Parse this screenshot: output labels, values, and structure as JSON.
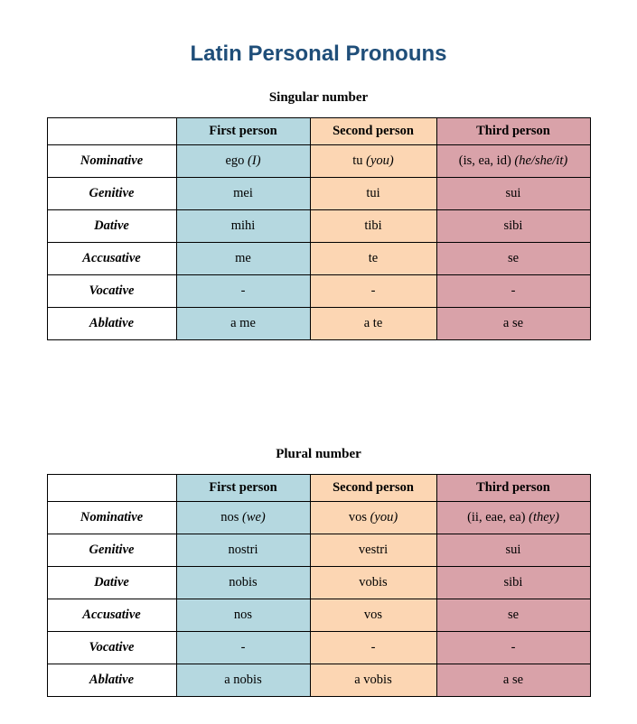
{
  "page": {
    "title": "Latin Personal Pronouns"
  },
  "colors": {
    "title_text": "#1f4e79",
    "first_person_bg": "#b5d8e0",
    "second_person_bg": "#fcd6b3",
    "third_person_bg": "#d9a2a9",
    "border": "#000000"
  },
  "tables": [
    {
      "caption": "Singular number",
      "headers": [
        "",
        "First person",
        "Second person",
        "Third person"
      ],
      "rows": [
        {
          "case": "Nominative",
          "cells": [
            {
              "main": "ego",
              "note": "(I)"
            },
            {
              "main": "tu",
              "note": "(you)"
            },
            {
              "main": "(is, ea, id)",
              "note": "(he/she/it)"
            }
          ]
        },
        {
          "case": "Genitive",
          "cells": [
            {
              "main": "mei",
              "note": ""
            },
            {
              "main": "tui",
              "note": ""
            },
            {
              "main": "sui",
              "note": ""
            }
          ]
        },
        {
          "case": "Dative",
          "cells": [
            {
              "main": "mihi",
              "note": ""
            },
            {
              "main": "tibi",
              "note": ""
            },
            {
              "main": "sibi",
              "note": ""
            }
          ]
        },
        {
          "case": "Accusative",
          "cells": [
            {
              "main": "me",
              "note": ""
            },
            {
              "main": "te",
              "note": ""
            },
            {
              "main": "se",
              "note": ""
            }
          ]
        },
        {
          "case": "Vocative",
          "cells": [
            {
              "main": "-",
              "note": ""
            },
            {
              "main": "-",
              "note": ""
            },
            {
              "main": "-",
              "note": ""
            }
          ]
        },
        {
          "case": "Ablative",
          "cells": [
            {
              "main": "a me",
              "note": ""
            },
            {
              "main": "a te",
              "note": ""
            },
            {
              "main": "a se",
              "note": ""
            }
          ]
        }
      ]
    },
    {
      "caption": "Plural number",
      "headers": [
        "",
        "First person",
        "Second person",
        "Third person"
      ],
      "rows": [
        {
          "case": "Nominative",
          "cells": [
            {
              "main": "nos",
              "note": "(we)"
            },
            {
              "main": "vos",
              "note": "(you)"
            },
            {
              "main": "(ii, eae, ea)",
              "note": "(they)"
            }
          ]
        },
        {
          "case": "Genitive",
          "cells": [
            {
              "main": "nostri",
              "note": ""
            },
            {
              "main": "vestri",
              "note": ""
            },
            {
              "main": "sui",
              "note": ""
            }
          ]
        },
        {
          "case": "Dative",
          "cells": [
            {
              "main": "nobis",
              "note": ""
            },
            {
              "main": "vobis",
              "note": ""
            },
            {
              "main": "sibi",
              "note": ""
            }
          ]
        },
        {
          "case": "Accusative",
          "cells": [
            {
              "main": "nos",
              "note": ""
            },
            {
              "main": "vos",
              "note": ""
            },
            {
              "main": "se",
              "note": ""
            }
          ]
        },
        {
          "case": "Vocative",
          "cells": [
            {
              "main": "-",
              "note": ""
            },
            {
              "main": "-",
              "note": ""
            },
            {
              "main": "-",
              "note": ""
            }
          ]
        },
        {
          "case": "Ablative",
          "cells": [
            {
              "main": "a nobis",
              "note": ""
            },
            {
              "main": "a vobis",
              "note": ""
            },
            {
              "main": "a se",
              "note": ""
            }
          ]
        }
      ]
    }
  ]
}
